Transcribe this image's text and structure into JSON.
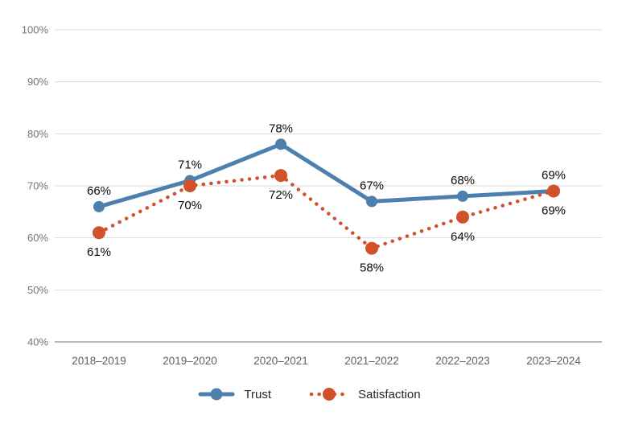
{
  "chart_data": {
    "type": "line",
    "categories": [
      "2018–2019",
      "2019–2020",
      "2020–2021",
      "2021–2022",
      "2022–2023",
      "2023–2024"
    ],
    "series": [
      {
        "name": "Trust",
        "values": [
          66,
          71,
          78,
          67,
          68,
          69
        ],
        "labels": [
          "66%",
          "71%",
          "78%",
          "67%",
          "68%",
          "69%"
        ],
        "color": "#4d80ac",
        "style": "solid",
        "label_position": "above"
      },
      {
        "name": "Satisfaction",
        "values": [
          61,
          70,
          72,
          58,
          64,
          69
        ],
        "labels": [
          "61%",
          "70%",
          "72%",
          "58%",
          "64%",
          "69%"
        ],
        "color": "#d3512a",
        "style": "dotted",
        "label_position": "below"
      }
    ],
    "title": "",
    "xlabel": "",
    "ylabel": "",
    "ylim": [
      40,
      100
    ],
    "yticks": [
      100,
      90,
      80,
      70,
      60,
      50,
      40
    ],
    "ytick_format": "{v}%",
    "grid": true,
    "legend_position": "bottom"
  },
  "colors": {
    "background": "#ffffff",
    "grid": "#dadada",
    "axis_line": "#a3a3a3",
    "ytick_text": "#757575",
    "xtick_text": "#606060",
    "data_label_text": "#0a0a0a",
    "legend_text": "#262626",
    "trust_blue": "#4d80ac",
    "satisfaction_orange": "#d3512a"
  }
}
